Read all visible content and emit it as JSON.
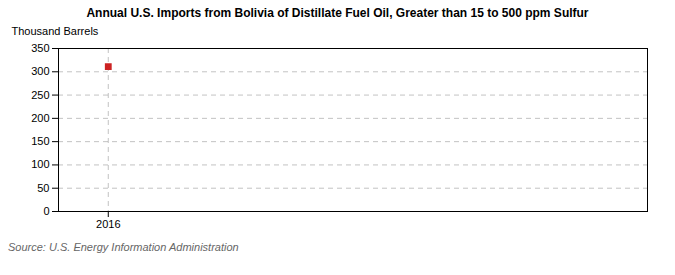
{
  "chart_data": {
    "type": "scatter",
    "title": "Annual U.S. Imports from Bolivia of Distillate Fuel Oil, Greater than 15 to 500 ppm Sulfur",
    "ylabel": "Thousand Barrels",
    "source": "Source: U.S. Energy Information Administration",
    "x": [
      2016
    ],
    "values": [
      311
    ],
    "color": "#cc2222",
    "marker": "square",
    "xlim": [
      2015.4,
      2022.5
    ],
    "xticks": [
      {
        "value": 2016,
        "label": "2016"
      }
    ],
    "ylim": [
      0,
      350
    ],
    "yticks": [
      0,
      50,
      100,
      150,
      200,
      250,
      300,
      350
    ],
    "grid": true
  }
}
